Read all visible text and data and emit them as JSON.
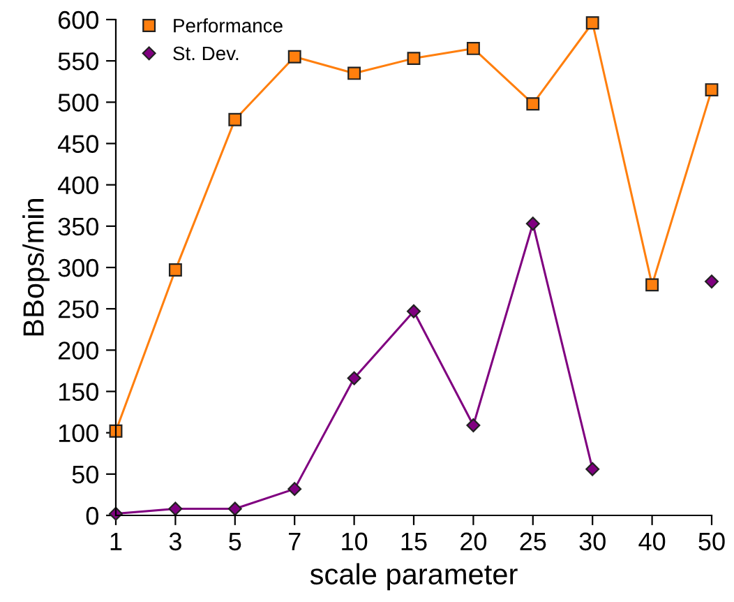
{
  "chart_data": {
    "type": "line",
    "xlabel": "scale parameter",
    "ylabel": "BBops/min",
    "categories": [
      "1",
      "3",
      "5",
      "7",
      "10",
      "15",
      "20",
      "25",
      "30",
      "40",
      "50"
    ],
    "series": [
      {
        "name": "Performance",
        "color": "#ff7f0e",
        "marker": "square",
        "values": [
          102,
          297,
          479,
          555,
          535,
          553,
          565,
          498,
          596,
          279,
          515
        ]
      },
      {
        "name": "St. Dev.",
        "color": "#800080",
        "marker": "diamond",
        "values": [
          2,
          8,
          8,
          32,
          166,
          247,
          109,
          353,
          56,
          null,
          283
        ]
      }
    ],
    "ylim": [
      0,
      600
    ],
    "yticks": [
      0,
      50,
      100,
      150,
      200,
      250,
      300,
      350,
      400,
      450,
      500,
      550,
      600
    ],
    "grid": false,
    "legend": "top left",
    "line_style": "solid"
  }
}
